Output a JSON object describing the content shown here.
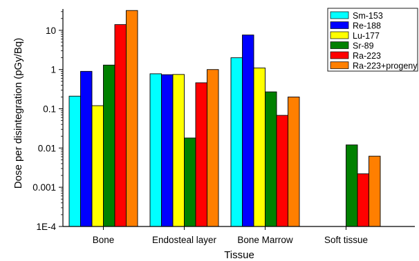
{
  "chart_data": {
    "type": "bar",
    "xlabel": "Tissue",
    "ylabel": "Dose per disintegration (pGy/Bq)",
    "yscale": "log",
    "ylim": [
      0.0001,
      35
    ],
    "y_ticks": [
      0.0001,
      0.001,
      0.01,
      0.1,
      1,
      10
    ],
    "y_tick_labels": [
      "1E-4",
      "0.001",
      "0.01",
      "0.1",
      "1",
      "10"
    ],
    "categories": [
      "Bone",
      "Endosteal layer",
      "Bone Marrow",
      "Soft tissue"
    ],
    "legend_position": "top-right",
    "grid": false,
    "series": [
      {
        "name": "Sm-153",
        "color": "#00ffff",
        "values": [
          0.21,
          0.78,
          2.0,
          null
        ]
      },
      {
        "name": "Re-188",
        "color": "#0000ff",
        "values": [
          0.9,
          0.74,
          7.6,
          null
        ]
      },
      {
        "name": "Lu-177",
        "color": "#ffff00",
        "values": [
          0.12,
          0.75,
          1.1,
          null
        ]
      },
      {
        "name": "Sr-89",
        "color": "#008000",
        "values": [
          1.3,
          0.018,
          0.27,
          0.012
        ]
      },
      {
        "name": "Ra-223",
        "color": "#ff0000",
        "values": [
          14,
          0.46,
          0.068,
          0.0022
        ]
      },
      {
        "name": "Ra-223+progeny",
        "color": "#ff7f00",
        "values": [
          32,
          1.0,
          0.2,
          0.0062
        ]
      }
    ]
  }
}
